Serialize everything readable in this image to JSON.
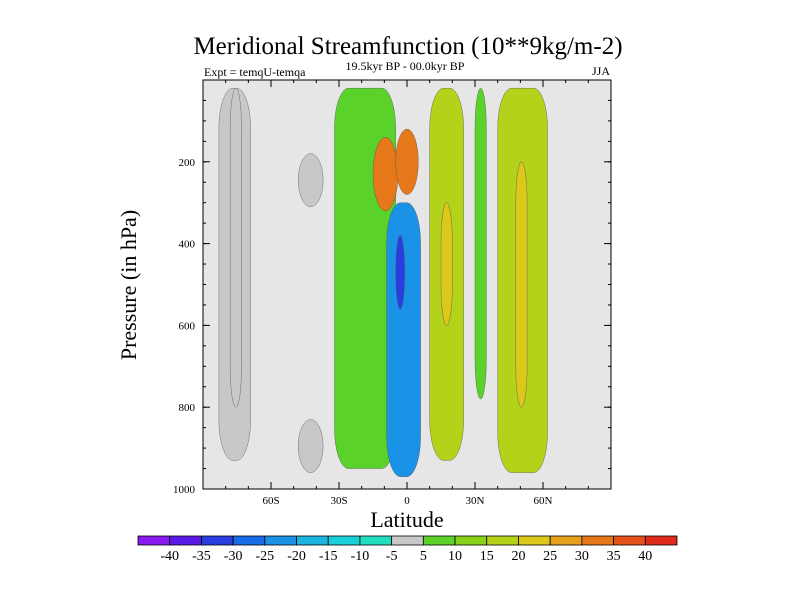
{
  "chart_data": {
    "type": "heatmap",
    "subtype": "filled-contour",
    "title": "Meridional Streamfunction (10**9kg/m-2)",
    "subtitle_left": "Expt = temqU-temqa",
    "subtitle_center": "19.5kyr BP - 00.0kyr BP",
    "subtitle_right": "JJA",
    "xlabel": "Latitude",
    "ylabel": "Pressure (in hPa)",
    "xlim": [
      -90,
      90
    ],
    "ylim": [
      1000,
      0
    ],
    "x_ticks": [
      -60,
      -30,
      0,
      30,
      60
    ],
    "x_tick_labels": [
      "60S",
      "30S",
      "0",
      "30N",
      "60N"
    ],
    "y_ticks": [
      200,
      400,
      600,
      800,
      1000
    ],
    "y_tick_labels": [
      "200",
      "400",
      "600",
      "800",
      "1000"
    ],
    "colorbar": {
      "levels": [
        -40,
        -35,
        -30,
        -25,
        -20,
        -15,
        -10,
        -5,
        5,
        10,
        15,
        20,
        25,
        30,
        35,
        40
      ],
      "labels": [
        "-40",
        "-35",
        "-30",
        "-25",
        "-20",
        "-15",
        "-10",
        "-5",
        "5",
        "10",
        "15",
        "20",
        "25",
        "30",
        "35",
        "40"
      ],
      "colors": [
        "#8a1aef",
        "#5a1ae6",
        "#2a3ee0",
        "#1a6be6",
        "#1a92e6",
        "#1ab4e0",
        "#1ad0d8",
        "#22dcc0",
        "#c8c8c8",
        "#5ad22a",
        "#8ad21a",
        "#b4d21a",
        "#dcc81a",
        "#e6a01a",
        "#e6781a",
        "#e6501a",
        "#e02a1a"
      ]
    },
    "regions": [
      {
        "name": "sh-polar-cell",
        "value": -5,
        "lat": [
          -83,
          -69
        ],
        "p": [
          20,
          930
        ]
      },
      {
        "name": "sh-polar-inner",
        "value": -5,
        "lat": [
          -78,
          -73
        ],
        "p": [
          20,
          800
        ]
      },
      {
        "name": "sh-midlat-patch",
        "value": -5,
        "lat": [
          -48,
          -37
        ],
        "p": [
          180,
          310
        ]
      },
      {
        "name": "sh-low-patch",
        "value": -5,
        "lat": [
          -48,
          -37
        ],
        "p": [
          830,
          960
        ]
      },
      {
        "name": "sh-positive-cell",
        "value": 5,
        "lat": [
          -32,
          -5
        ],
        "p": [
          20,
          950
        ]
      },
      {
        "name": "sh-jet-max-west",
        "value": 30,
        "lat": [
          -15,
          -4
        ],
        "p": [
          140,
          320
        ]
      },
      {
        "name": "eq-jet-max",
        "value": 30,
        "lat": [
          -5,
          5
        ],
        "p": [
          120,
          280
        ]
      },
      {
        "name": "eq-negative-cell",
        "value": -25,
        "lat": [
          -9,
          6
        ],
        "p": [
          300,
          970
        ]
      },
      {
        "name": "eq-negative-core",
        "value": -35,
        "lat": [
          -5,
          -1
        ],
        "p": [
          380,
          560
        ]
      },
      {
        "name": "nh-tropical-cell",
        "value": 15,
        "lat": [
          10,
          25
        ],
        "p": [
          20,
          930
        ]
      },
      {
        "name": "nh-tropical-core",
        "value": 20,
        "lat": [
          15,
          20
        ],
        "p": [
          300,
          600
        ]
      },
      {
        "name": "nh-subtropical-cell",
        "value": 5,
        "lat": [
          30,
          35
        ],
        "p": [
          20,
          780
        ]
      },
      {
        "name": "nh-midlat-cell",
        "value": 15,
        "lat": [
          40,
          62
        ],
        "p": [
          20,
          960
        ]
      },
      {
        "name": "nh-midlat-core",
        "value": 20,
        "lat": [
          48,
          53
        ],
        "p": [
          200,
          800
        ]
      }
    ]
  }
}
